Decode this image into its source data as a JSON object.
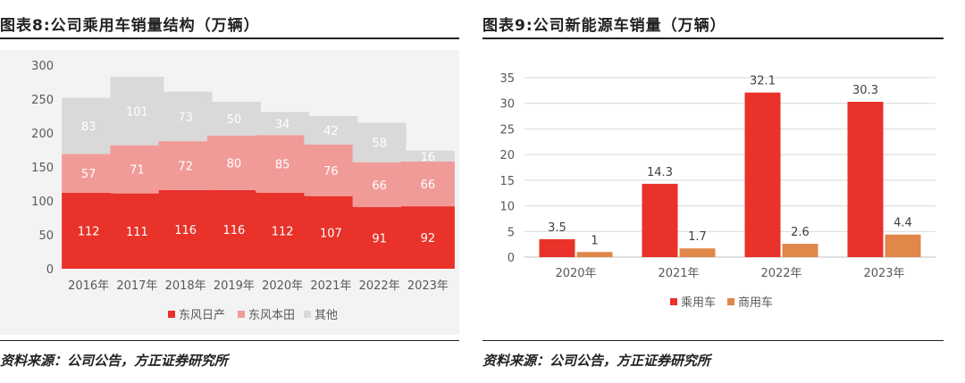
{
  "left": {
    "title": "图表8:公司乘用车销量结构（万辆）",
    "source": "资料来源：公司公告，方正证券研究所"
  },
  "right": {
    "title": "图表9:公司新能源车销量（万辆）",
    "source": "资料来源：公司公告，方正证券研究所"
  },
  "chart_data": [
    {
      "type": "bar",
      "stacked": true,
      "categories": [
        "2016年",
        "2017年",
        "2018年",
        "2019年",
        "2020年",
        "2021年",
        "2022年",
        "2023年"
      ],
      "series": [
        {
          "name": "东风日产",
          "values": [
            112,
            111,
            116,
            116,
            112,
            107,
            91,
            92
          ],
          "color": "#e8322a"
        },
        {
          "name": "东风本田",
          "values": [
            57,
            71,
            72,
            80,
            85,
            76,
            66,
            66
          ],
          "color": "#f19b98"
        },
        {
          "name": "其他",
          "values": [
            83,
            101,
            73,
            50,
            34,
            42,
            58,
            16
          ],
          "color": "#d9d9d9"
        }
      ],
      "ylim": [
        0,
        300
      ],
      "yticks": [
        0,
        50,
        100,
        150,
        200,
        250,
        300
      ],
      "grid": false,
      "legend": "bottom",
      "background": "#f3f3f3"
    },
    {
      "type": "bar",
      "stacked": false,
      "categories": [
        "2020年",
        "2021年",
        "2022年",
        "2023年"
      ],
      "series": [
        {
          "name": "乘用车",
          "values": [
            3.5,
            14.3,
            32.1,
            30.3
          ],
          "labels": [
            "3.5",
            "14.3",
            "32.1",
            "30.3"
          ],
          "color": "#e8322a"
        },
        {
          "name": "商用车",
          "values": [
            1,
            1.7,
            2.6,
            4.4
          ],
          "labels": [
            "1",
            "1.7",
            "2.6",
            "4.4"
          ],
          "color": "#e0874a"
        }
      ],
      "ylim": [
        0,
        35
      ],
      "yticks": [
        0,
        5,
        10,
        15,
        20,
        25,
        30,
        35
      ],
      "grid": true,
      "legend": "bottom"
    }
  ]
}
